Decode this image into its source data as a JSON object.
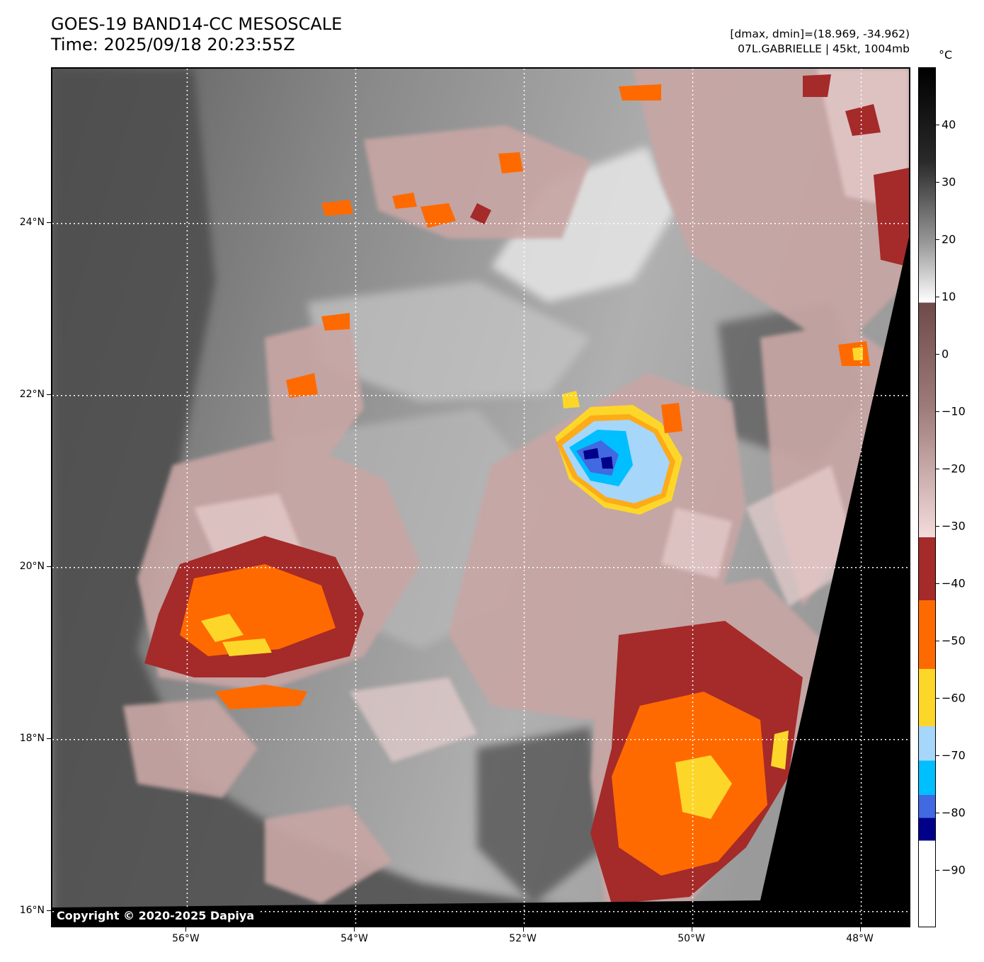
{
  "header": {
    "title_line1": "GOES-19 BAND14-CC MESOSCALE",
    "title_line2": "Time: 2025/09/18 20:23:55Z",
    "info_line1": "[dmax, dmin]=(18.969, -34.962)",
    "info_line2": "07L.GABRIELLE | 45kt, 1004mb"
  },
  "map": {
    "copyright": "Copyright © 2020-2025 Dapiya",
    "lat_range": [
      15.8,
      25.8
    ],
    "lon_range": [
      -57.6,
      -47.4
    ],
    "lat_labels": [
      {
        "value": 24,
        "text": "24°N"
      },
      {
        "value": 22,
        "text": "22°N"
      },
      {
        "value": 20,
        "text": "20°N"
      },
      {
        "value": 18,
        "text": "18°N"
      },
      {
        "value": 16,
        "text": "16°N"
      }
    ],
    "lon_labels": [
      {
        "value": -56,
        "text": "56°W"
      },
      {
        "value": -54,
        "text": "54°W"
      },
      {
        "value": -52,
        "text": "52°W"
      },
      {
        "value": -50,
        "text": "50°W"
      },
      {
        "value": -48,
        "text": "48°W"
      }
    ],
    "storm_center": {
      "lat": 21.0,
      "lon": -51.2
    }
  },
  "colorbar": {
    "unit": "°C",
    "range": [
      -100,
      50
    ],
    "labels": [
      "40",
      "30",
      "20",
      "10",
      "0",
      "−10",
      "−20",
      "−30",
      "−40",
      "−50",
      "−60",
      "−70",
      "−80",
      "−90"
    ],
    "label_values": [
      40,
      30,
      20,
      10,
      0,
      -10,
      -20,
      -30,
      -40,
      -50,
      -60,
      -70,
      -80,
      -90
    ],
    "bands": [
      {
        "from": 50,
        "to": 9,
        "color": "gradient-gray"
      },
      {
        "from": 9,
        "to": -32,
        "color": "gradient-brown"
      },
      {
        "from": -32,
        "to": -43,
        "color": "#a52a2a"
      },
      {
        "from": -43,
        "to": -55,
        "color": "#ff6a00"
      },
      {
        "from": -55,
        "to": -65,
        "color": "#fcd72a"
      },
      {
        "from": -65,
        "to": -71,
        "color": "#a6d6fa"
      },
      {
        "from": -71,
        "to": -77,
        "color": "#00bfff"
      },
      {
        "from": -77,
        "to": -81,
        "color": "#4169e1"
      },
      {
        "from": -81,
        "to": -85,
        "color": "#00008b"
      },
      {
        "from": -85,
        "to": -100,
        "color": "#ffffff"
      }
    ]
  }
}
